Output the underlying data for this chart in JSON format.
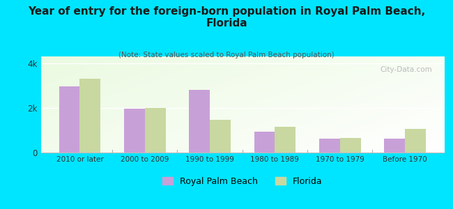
{
  "title": "Year of entry for the foreign-born population in Royal Palm Beach,\nFlorida",
  "subtitle": "(Note: State values scaled to Royal Palm Beach population)",
  "categories": [
    "2010 or later",
    "2000 to 2009",
    "1990 to 1999",
    "1980 to 1989",
    "1970 to 1979",
    "Before 1970"
  ],
  "rpb_values": [
    2950,
    1950,
    2800,
    950,
    630,
    630
  ],
  "fl_values": [
    3300,
    1980,
    1450,
    1150,
    650,
    1050
  ],
  "rpb_color": "#c8a0d8",
  "fl_color": "#c8d8a0",
  "background_color": "#00e5ff",
  "ylabel_ticks": [
    "0",
    "2k",
    "4k"
  ],
  "ytick_values": [
    0,
    2000,
    4000
  ],
  "ylim": [
    0,
    4300
  ],
  "bar_width": 0.32,
  "watermark": "City-Data.com",
  "legend_rpb": "Royal Palm Beach",
  "legend_fl": "Florida",
  "title_fontsize": 11,
  "subtitle_fontsize": 7.5
}
